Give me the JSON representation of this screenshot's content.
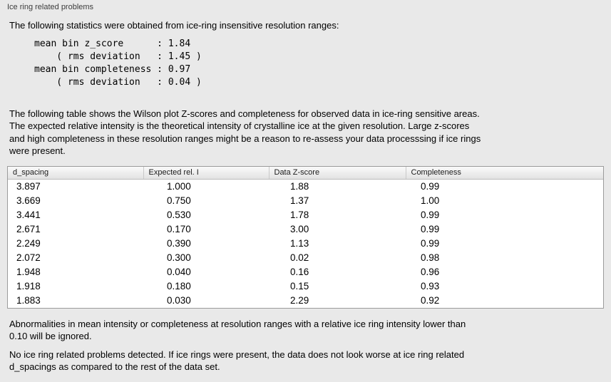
{
  "panel": {
    "title": "Ice ring related problems"
  },
  "intro": "The following statistics were obtained from ice-ring insensitive resolution ranges:",
  "stats_block": "mean bin z_score      : 1.84\n    ( rms deviation   : 1.45 )\nmean bin completeness : 0.97\n    ( rms deviation   : 0.04 )",
  "description": "The following table shows the Wilson plot Z-scores and completeness for observed data in ice-ring sensitive areas.\nThe expected relative intensity is the theoretical intensity of crystalline ice at the given resolution. Large z-scores\nand high completeness in these resolution ranges might be a reason to re-assess your data processsing if ice rings\nwere present.",
  "table": {
    "columns": [
      "d_spacing",
      "Expected rel. I",
      "Data Z-score",
      "Completeness"
    ],
    "rows": [
      [
        "3.897",
        "1.000",
        "1.88",
        "0.99"
      ],
      [
        "3.669",
        "0.750",
        "1.37",
        "1.00"
      ],
      [
        "3.441",
        "0.530",
        "1.78",
        "0.99"
      ],
      [
        "2.671",
        "0.170",
        "3.00",
        "0.99"
      ],
      [
        "2.249",
        "0.390",
        "1.13",
        "0.99"
      ],
      [
        "2.072",
        "0.300",
        "0.02",
        "0.98"
      ],
      [
        "1.948",
        "0.040",
        "0.16",
        "0.96"
      ],
      [
        "1.918",
        "0.180",
        "0.15",
        "0.93"
      ],
      [
        "1.883",
        "0.030",
        "2.29",
        "0.92"
      ]
    ]
  },
  "note_threshold": "Abnormalities in mean intensity or completeness at resolution ranges with a relative ice ring intensity lower than\n0.10 will be ignored.",
  "note_conclusion": "No ice ring related problems detected. If ice rings were present, the data does not look worse at ice ring related\nd_spacings as compared to the rest of the data set."
}
